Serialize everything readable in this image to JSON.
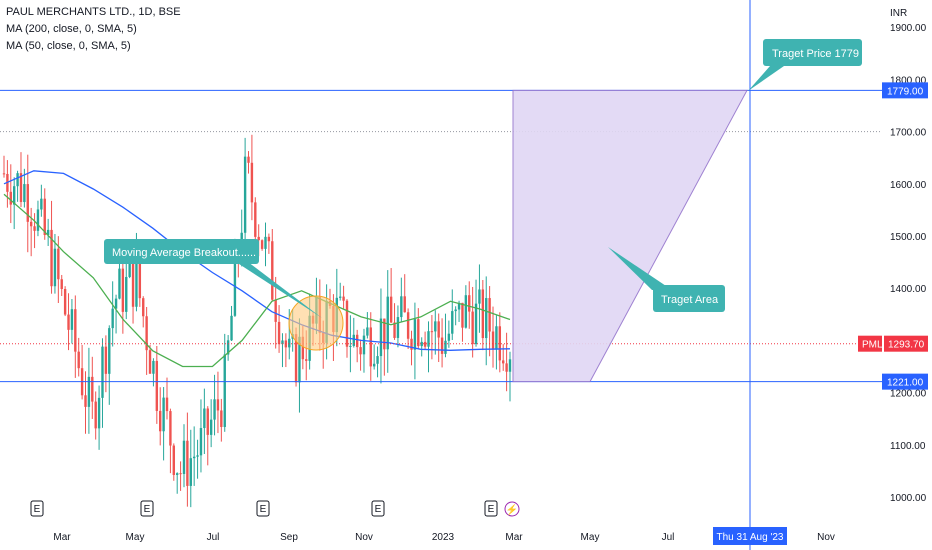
{
  "header": {
    "title": "PAUL MERCHANTS LTD., 1D, BSE",
    "ma200": "MA (200, close, 0, SMA, 5)",
    "ma50": "MA (50, close, 0, SMA, 5)",
    "currency": "INR"
  },
  "annotations": {
    "breakout_label": "Moving Average Breakout......",
    "target_price_label": "Traget Price 1779",
    "target_area_label": "Traget Area",
    "symbol_tag": "PML",
    "last_price": "1293.70",
    "target_price_tag": "1779.00",
    "support_tag": "1221.00",
    "crosshair_date": "Thu 31 Aug '23"
  },
  "colors": {
    "up": "#26a69a",
    "down": "#ef5350",
    "ma200": "#2962ff",
    "ma50": "#4caf50",
    "hline": "#2962ff",
    "zone_fill": "#e1d7f4",
    "zone_stroke": "#9575cd",
    "callout": "#3fb3b1",
    "price_tag": "#f23645",
    "breakout_circle": "#ffcc80"
  },
  "chart_data": {
    "type": "candlestick",
    "symbol": "PML",
    "exchange": "BSE",
    "interval": "1D",
    "ylim": [
      950,
      1950
    ],
    "yticks": [
      "1000.00",
      "1100.00",
      "1200.00",
      "1300.00",
      "1400.00",
      "1500.00",
      "1600.00",
      "1700.00",
      "1800.00",
      "1900.00"
    ],
    "xticks": [
      "Mar",
      "May",
      "Jul",
      "Sep",
      "Nov",
      "2023",
      "Mar",
      "May",
      "Jul",
      "Nov"
    ],
    "earnings_markers": [
      "E",
      "E",
      "E",
      "E",
      "E"
    ],
    "dividend_marker": "⚡",
    "last_price": 1293.7,
    "target_price": 1779,
    "support_level": 1221,
    "grid": false,
    "series": [
      {
        "name": "MA (200, close, 0, SMA, 5)",
        "values": [
          1600,
          1625,
          1620,
          1590,
          1555,
          1515,
          1470,
          1430,
          1395,
          1355,
          1330,
          1310,
          1300,
          1295,
          1283,
          1281,
          1283,
          1284
        ]
      },
      {
        "name": "MA (50, close, 0, SMA, 5)",
        "values": [
          1580,
          1530,
          1470,
          1420,
          1340,
          1280,
          1250,
          1250,
          1300,
          1375,
          1395,
          1370,
          1345,
          1330,
          1345,
          1375,
          1360,
          1340
        ]
      },
      {
        "name": "price_path",
        "values": [
          1620,
          1590,
          1480,
          1320,
          1150,
          1380,
          1420,
          1200,
          1050,
          1100,
          1200,
          1620,
          1450,
          1250,
          1320,
          1360,
          1290,
          1320,
          1330,
          1340,
          1300,
          1360,
          1330,
          1294
        ]
      }
    ]
  }
}
